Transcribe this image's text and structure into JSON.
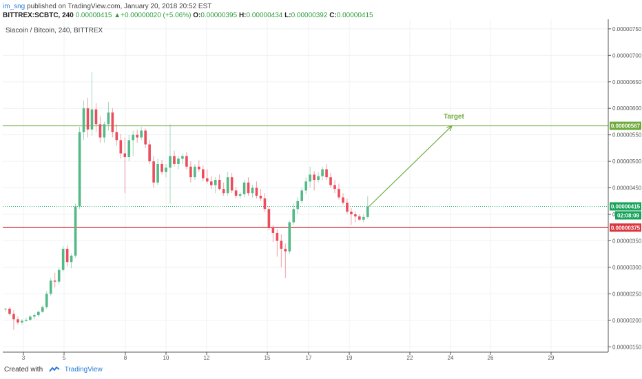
{
  "header": {
    "author": "im_sng",
    "published_text": "published on TradingView.com, January 20, 2018 20:52 EST",
    "symbol_line": "BITTREX:SCBTC, 240",
    "change_arrow": "▲",
    "change_value": "+0.00000020 (+5.06%)",
    "open_label": "O:",
    "open_value": "0.00000395",
    "high_label": "H:",
    "high_value": "0.00000434",
    "low_label": "L:",
    "low_value": "0.00000392",
    "close_label": "C:",
    "close_value": "0.00000415",
    "first_value": "0.00000415"
  },
  "chart_title": "Siacoin / Bitcoin, 240, BITTREX",
  "footer": {
    "created_with": "Created with",
    "brand": "TradingView"
  },
  "colors": {
    "up": "#53b987",
    "down": "#eb4d5c",
    "target": "#6fab3c",
    "support": "#d9363e",
    "price_tag": "#17a35a"
  },
  "chart_data": {
    "type": "candlestick",
    "ylim": [
      1.4e-06,
      7.68e-06
    ],
    "y_ticks": [
      "0.00000750",
      "0.00000700",
      "0.00000650",
      "0.00000600",
      "0.00000550",
      "0.00000500",
      "0.00000450",
      "0.00000400",
      "0.00000350",
      "0.00000300",
      "0.00000250",
      "0.00000200",
      "0.00000150"
    ],
    "x_ticks": [
      "3",
      "5",
      "8",
      "10",
      "12",
      "15",
      "17",
      "19",
      "22",
      "24",
      "26",
      "29"
    ],
    "candles": [
      [
        2.21e-06,
        2.23e-06,
        2.16e-06,
        2.22e-06
      ],
      [
        2.22e-06,
        2.25e-06,
        2.09e-06,
        2.12e-06
      ],
      [
        2.12e-06,
        2.19e-06,
        1.82e-06,
        2.02e-06
      ],
      [
        2.02e-06,
        2.07e-06,
        1.92e-06,
        1.96e-06
      ],
      [
        1.96e-06,
        2.02e-06,
        1.92e-06,
        1.99e-06
      ],
      [
        1.99e-06,
        2.05e-06,
        1.97e-06,
        2.01e-06
      ],
      [
        2.01e-06,
        2.1e-06,
        1.99e-06,
        2.07e-06
      ],
      [
        2.07e-06,
        2.13e-06,
        2.02e-06,
        2.1e-06
      ],
      [
        2.1e-06,
        2.18e-06,
        2.06e-06,
        2.16e-06
      ],
      [
        2.16e-06,
        2.28e-06,
        2.14e-06,
        2.25e-06
      ],
      [
        2.25e-06,
        2.55e-06,
        2.22e-06,
        2.5e-06
      ],
      [
        2.5e-06,
        2.8e-06,
        2.46e-06,
        2.75e-06
      ],
      [
        2.75e-06,
        2.9e-06,
        2.62e-06,
        2.73e-06
      ],
      [
        2.73e-06,
        3e-06,
        2.68e-06,
        2.95e-06
      ],
      [
        2.95e-06,
        3.4e-06,
        2.92e-06,
        3.35e-06
      ],
      [
        3.35e-06,
        3.42e-06,
        3.02e-06,
        3.1e-06
      ],
      [
        3.1e-06,
        3.26e-06,
        2.98e-06,
        3.22e-06
      ],
      [
        3.22e-06,
        4.2e-06,
        3.18e-06,
        4.15e-06
      ],
      [
        4.15e-06,
        5.65e-06,
        4.1e-06,
        5.55e-06
      ],
      [
        5.55e-06,
        6.15e-06,
        5.4e-06,
        6e-06
      ],
      [
        6e-06,
        6.2e-06,
        5.45e-06,
        5.6e-06
      ],
      [
        5.6e-06,
        6.68e-06,
        5.48e-06,
        5.98e-06
      ],
      [
        5.98e-06,
        6.1e-06,
        5.55e-06,
        5.7e-06
      ],
      [
        5.7e-06,
        5.85e-06,
        5.35e-06,
        5.45e-06
      ],
      [
        5.45e-06,
        5.75e-06,
        5.35e-06,
        5.7e-06
      ],
      [
        5.7e-06,
        6.12e-06,
        5.58e-06,
        5.92e-06
      ],
      [
        5.92e-06,
        6e-06,
        5.45e-06,
        5.55e-06
      ],
      [
        5.55e-06,
        5.7e-06,
        5.3e-06,
        5.4e-06
      ],
      [
        5.4e-06,
        5.52e-06,
        5.05e-06,
        5.15e-06
      ],
      [
        5.15e-06,
        5.45e-06,
        4.4e-06,
        5.08e-06
      ],
      [
        5.08e-06,
        5.5e-06,
        5e-06,
        5.4e-06
      ],
      [
        5.4e-06,
        5.58e-06,
        5.1e-06,
        5.5e-06
      ],
      [
        5.5e-06,
        5.6e-06,
        5.35e-06,
        5.45e-06
      ],
      [
        5.45e-06,
        5.65e-06,
        5.4e-06,
        5.58e-06
      ],
      [
        5.58e-06,
        5.62e-06,
        5.25e-06,
        5.32e-06
      ],
      [
        5.32e-06,
        5.4e-06,
        4.95e-06,
        5e-06
      ],
      [
        5e-06,
        5.1e-06,
        4.5e-06,
        4.6e-06
      ],
      [
        4.6e-06,
        5.05e-06,
        4.55e-06,
        4.95e-06
      ],
      [
        4.95e-06,
        5.03e-06,
        4.75e-06,
        4.8e-06
      ],
      [
        4.8e-06,
        4.95e-06,
        4.7e-06,
        4.88e-06
      ],
      [
        4.88e-06,
        5.7e-06,
        4.2e-06,
        5.1e-06
      ],
      [
        5.1e-06,
        5.2e-06,
        4.9e-06,
        4.95e-06
      ],
      [
        4.95e-06,
        5.1e-06,
        4.85e-06,
        5.05e-06
      ],
      [
        5.05e-06,
        5.15e-06,
        4.95e-06,
        5.1e-06
      ],
      [
        5.1e-06,
        5.18e-06,
        4.85e-06,
        4.9e-06
      ],
      [
        4.9e-06,
        5e-06,
        4.6e-06,
        4.7e-06
      ],
      [
        4.7e-06,
        4.95e-06,
        4.65e-06,
        4.9e-06
      ],
      [
        4.9e-06,
        5.02e-06,
        4.8e-06,
        4.85e-06
      ],
      [
        4.85e-06,
        4.92e-06,
        4.62e-06,
        4.68e-06
      ],
      [
        4.68e-06,
        4.85e-06,
        4.58e-06,
        4.62e-06
      ],
      [
        4.62e-06,
        4.72e-06,
        4.48e-06,
        4.55e-06
      ],
      [
        4.55e-06,
        4.7e-06,
        4.4e-06,
        4.65e-06
      ],
      [
        4.65e-06,
        4.75e-06,
        4.45e-06,
        4.48e-06
      ],
      [
        4.48e-06,
        4.6e-06,
        4.35e-06,
        4.4e-06
      ],
      [
        4.4e-06,
        4.8e-06,
        4.35e-06,
        4.7e-06
      ],
      [
        4.7e-06,
        4.78e-06,
        4.4e-06,
        4.45e-06
      ],
      [
        4.45e-06,
        4.52e-06,
        4.3e-06,
        4.35e-06
      ],
      [
        4.35e-06,
        4.42e-06,
        4.3e-06,
        4.38e-06
      ],
      [
        4.38e-06,
        4.65e-06,
        4.32e-06,
        4.6e-06
      ],
      [
        4.6e-06,
        4.7e-06,
        4.35e-06,
        4.4e-06
      ],
      [
        4.4e-06,
        4.55e-06,
        4.32e-06,
        4.5e-06
      ],
      [
        4.5e-06,
        4.62e-06,
        4.3e-06,
        4.35e-06
      ],
      [
        4.35e-06,
        4.48e-06,
        4.25e-06,
        4.3e-06
      ],
      [
        4.3e-06,
        4.4e-06,
        4.05e-06,
        4.1e-06
      ],
      [
        4.1e-06,
        4.15e-06,
        3.7e-06,
        3.75e-06
      ],
      [
        3.75e-06,
        3.8e-06,
        3.48e-06,
        3.65e-06
      ],
      [
        3.65e-06,
        3.72e-06,
        3.2e-06,
        3.5e-06
      ],
      [
        3.5e-06,
        3.62e-06,
        3e-06,
        3.35e-06
      ],
      [
        3.35e-06,
        3.45e-06,
        2.8e-06,
        3.3e-06
      ],
      [
        3.3e-06,
        3.88e-06,
        3.25e-06,
        3.85e-06
      ],
      [
        3.85e-06,
        4.2e-06,
        3.8e-06,
        4.1e-06
      ],
      [
        4.1e-06,
        4.32e-06,
        4e-06,
        4.25e-06
      ],
      [
        4.25e-06,
        4.5e-06,
        4.2e-06,
        4.45e-06
      ],
      [
        4.45e-06,
        4.7e-06,
        4.38e-06,
        4.62e-06
      ],
      [
        4.62e-06,
        4.9e-06,
        4.5e-06,
        4.75e-06
      ],
      [
        4.75e-06,
        4.82e-06,
        4.45e-06,
        4.65e-06
      ],
      [
        4.65e-06,
        4.8e-06,
        4.6e-06,
        4.72e-06
      ],
      [
        4.72e-06,
        4.9e-06,
        4.65e-06,
        4.85e-06
      ],
      [
        4.85e-06,
        4.95e-06,
        4.65e-06,
        4.7e-06
      ],
      [
        4.7e-06,
        4.78e-06,
        4.5e-06,
        4.55e-06
      ],
      [
        4.55e-06,
        4.65e-06,
        4.4e-06,
        4.48e-06
      ],
      [
        4.48e-06,
        4.58e-06,
        4.28e-06,
        4.32e-06
      ],
      [
        4.32e-06,
        4.4e-06,
        4.18e-06,
        4.22e-06
      ],
      [
        4.22e-06,
        4.3e-06,
        4e-06,
        4.05e-06
      ],
      [
        4.05e-06,
        4.12e-06,
        3.8e-06,
        4e-06
      ],
      [
        4e-06,
        4.05e-06,
        3.85e-06,
        3.96e-06
      ],
      [
        3.96e-06,
        4e-06,
        3.88e-06,
        3.9e-06
      ],
      [
        3.9e-06,
        4e-06,
        3.85e-06,
        3.95e-06
      ],
      [
        3.95e-06,
        4.34e-06,
        3.92e-06,
        4.15e-06
      ]
    ],
    "levels": [
      {
        "value": 5.67e-06,
        "label": "0.00000567",
        "kind": "target"
      },
      {
        "value": 4.15e-06,
        "label": "0.00000415",
        "kind": "current"
      },
      {
        "value": 3.75e-06,
        "label": "0.00000375",
        "kind": "support"
      }
    ],
    "countdown": "02:08:09",
    "annotation": {
      "text": "Target",
      "value": 5.67e-06
    }
  }
}
